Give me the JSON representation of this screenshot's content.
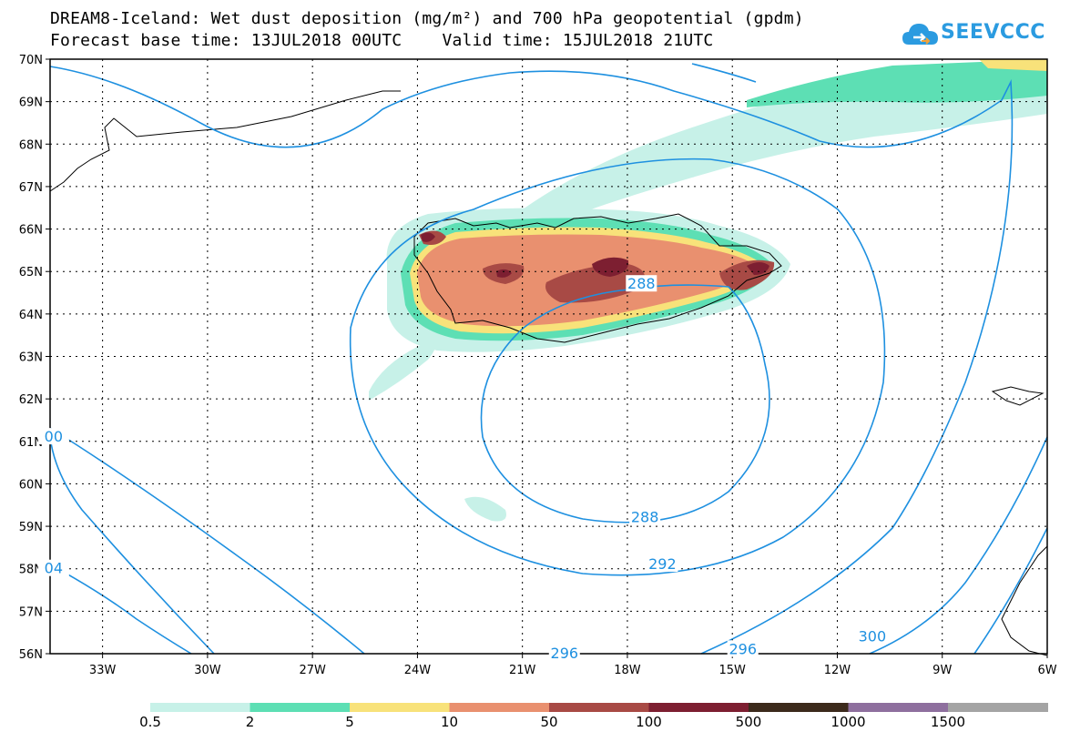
{
  "title": {
    "line1": "DREAM8-Iceland: Wet dust deposition (mg/m²) and 700 hPa geopotential (gpdm)",
    "line2": "Forecast base time: 13JUL2018 00UTC    Valid time: 15JUL2018 21UTC"
  },
  "logo": {
    "text": "SEEVCCC",
    "icon": "cloud-arrow-icon"
  },
  "map": {
    "lat_labels": [
      "70N",
      "69N",
      "68N",
      "67N",
      "66N",
      "65N",
      "64N",
      "63N",
      "62N",
      "61N",
      "60N",
      "59N",
      "58N",
      "57N",
      "56N"
    ],
    "lon_labels": [
      "33W",
      "30W",
      "27W",
      "24W",
      "21W",
      "18W",
      "15W",
      "12W",
      "9W",
      "6W"
    ],
    "lat_range": [
      56,
      70
    ],
    "lon_range": [
      -34.5,
      -6
    ],
    "contour_labels": [
      {
        "label": "288",
        "lon": -17.6,
        "lat": 64.7
      },
      {
        "label": "288",
        "lon": -17.5,
        "lat": 59.2
      },
      {
        "label": "292",
        "lon": -17.0,
        "lat": 58.1
      },
      {
        "label": "296",
        "lon": -19.8,
        "lat": 56.0
      },
      {
        "label": "296",
        "lon": -14.7,
        "lat": 56.1
      },
      {
        "label": "300",
        "lon": -11.0,
        "lat": 56.4
      },
      {
        "label": "00",
        "lon": -34.4,
        "lat": 61.1
      },
      {
        "label": "04",
        "lon": -34.4,
        "lat": 58.0
      }
    ],
    "contour_color": "#1e90e0"
  },
  "colorbar": {
    "labels": [
      "0.5",
      "2",
      "5",
      "10",
      "50",
      "100",
      "500",
      "1000",
      "1500"
    ],
    "colors": [
      "#c7f1e8",
      "#5ddfb4",
      "#f8e27a",
      "#e9906f",
      "#a84a45",
      "#7d1f31",
      "#3c2a1c",
      "#8e6f9e",
      "#a4a4a4"
    ]
  }
}
